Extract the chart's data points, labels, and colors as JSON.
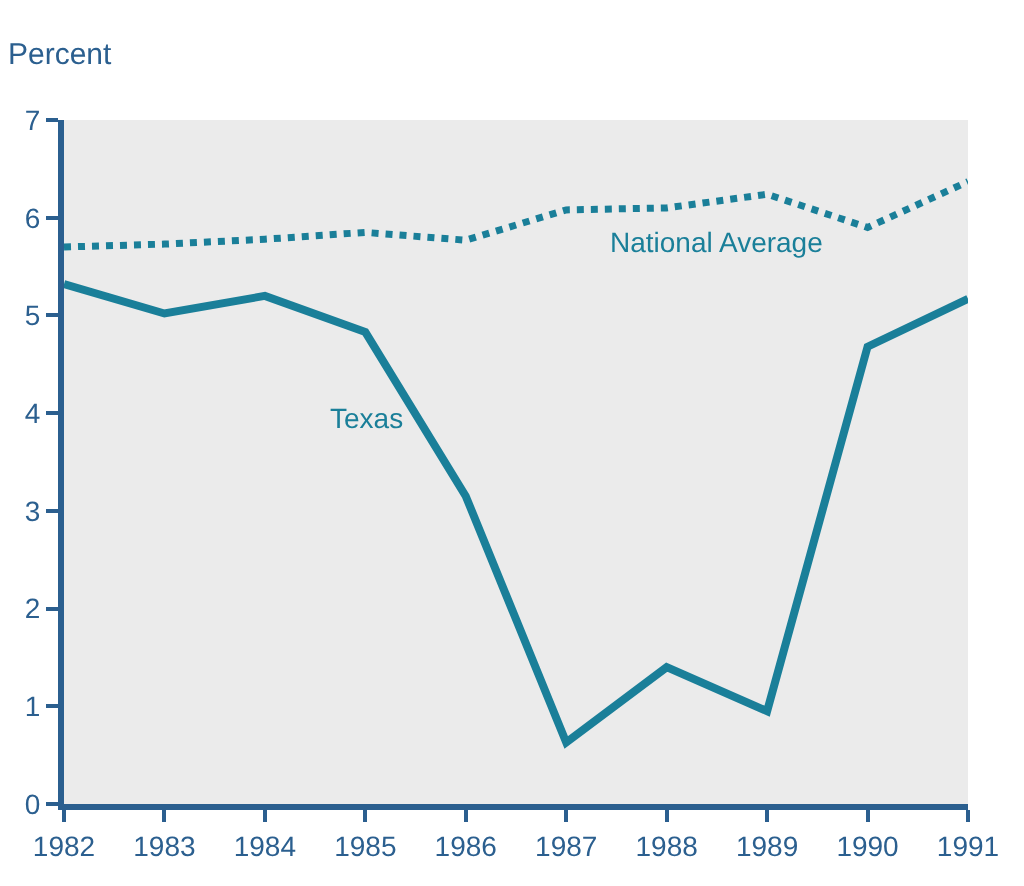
{
  "chart_data": {
    "type": "line",
    "ylabel": "Percent",
    "x": [
      1982,
      1983,
      1984,
      1985,
      1986,
      1987,
      1988,
      1989,
      1990,
      1991
    ],
    "series": [
      {
        "name": "National Average",
        "color": "#1a7f99",
        "line_style": "dotted",
        "values": [
          5.7,
          5.73,
          5.78,
          5.85,
          5.77,
          6.08,
          6.1,
          6.24,
          5.9,
          6.37
        ]
      },
      {
        "name": "Texas",
        "color": "#1a7f99",
        "line_style": "solid",
        "values": [
          5.32,
          5.02,
          5.2,
          4.83,
          3.15,
          0.63,
          1.4,
          0.95,
          4.68,
          5.17
        ]
      }
    ],
    "xlim": [
      1982,
      1991
    ],
    "xticks": [
      1982,
      1983,
      1984,
      1985,
      1986,
      1987,
      1988,
      1989,
      1990,
      1991
    ],
    "ylim": [
      0,
      7
    ],
    "yticks": [
      0,
      1,
      2,
      3,
      4,
      5,
      6,
      7
    ],
    "grid": false,
    "legend": false,
    "marker": "none"
  }
}
